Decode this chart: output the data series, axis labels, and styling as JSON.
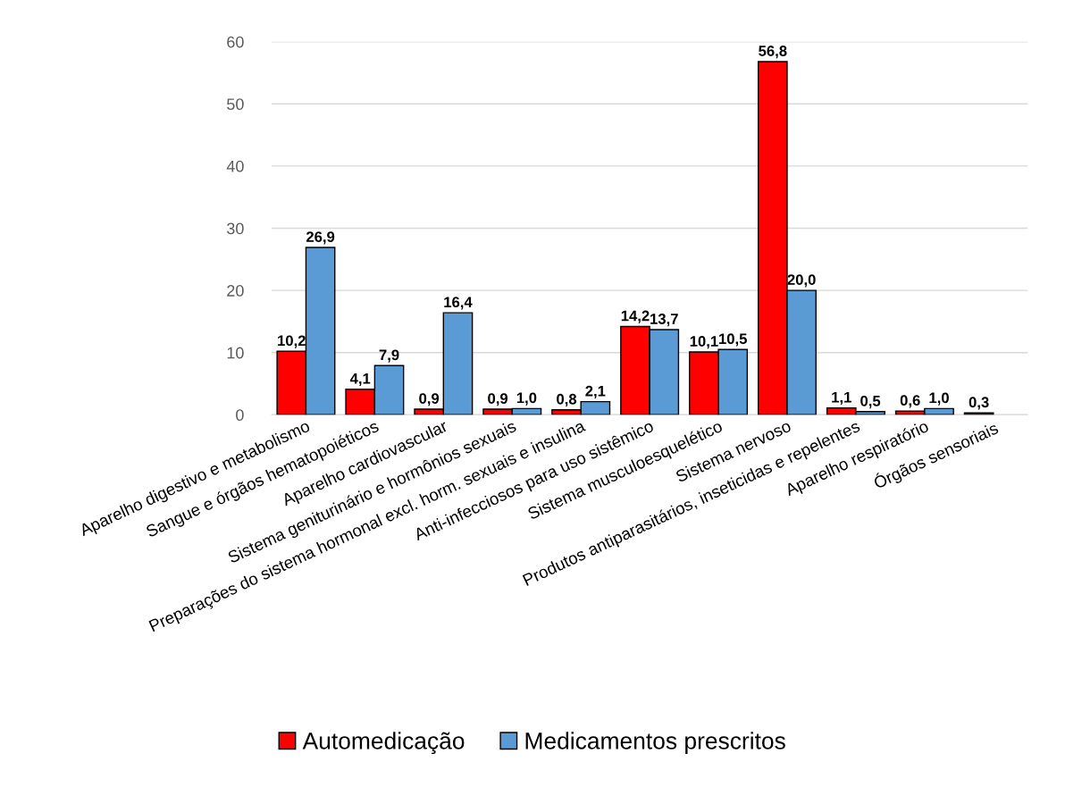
{
  "chart_data": {
    "type": "bar",
    "categories": [
      "Aparelho digestivo e metabolismo",
      "Sangue e órgãos hematopoiéticos",
      "Aparelho cardiovascular",
      "Sistema geniturinário e hormônios sexuais",
      "Preparações do sistema hormonal excl. horm. sexuais e insulina",
      "Anti-infecciosos para uso sistêmico",
      "Sistema musculoesquelético",
      "Sistema nervoso",
      "Produtos antiparasitários, inseticidas e repelentes",
      "Aparelho respiratório",
      "Órgãos sensoriais"
    ],
    "series": [
      {
        "name": "Automedicação",
        "color": "#ff0000",
        "values": [
          10.2,
          4.1,
          0.9,
          0.9,
          0.8,
          14.2,
          10.1,
          56.8,
          1.1,
          0.6,
          0.3
        ],
        "value_labels": [
          "10,2",
          "4,1",
          "0,9",
          "0,9",
          "0,8",
          "14,2",
          "10,1",
          "56,8",
          "1,1",
          "0,6",
          "0,3"
        ]
      },
      {
        "name": "Medicamentos prescritos",
        "color": "#5b9bd5",
        "values": [
          26.9,
          7.9,
          16.4,
          1.0,
          2.1,
          13.7,
          10.5,
          20.0,
          0.5,
          1.0,
          null
        ],
        "value_labels": [
          "26,9",
          "7,9",
          "16,4",
          "1,0",
          "2,1",
          "13,7",
          "10,5",
          "20,0",
          "0,5",
          "1,0",
          null
        ]
      }
    ],
    "ylim": [
      0,
      60
    ],
    "yticks": [
      0,
      10,
      20,
      30,
      40,
      50,
      60
    ],
    "grid": "y",
    "legend": "bottom"
  }
}
